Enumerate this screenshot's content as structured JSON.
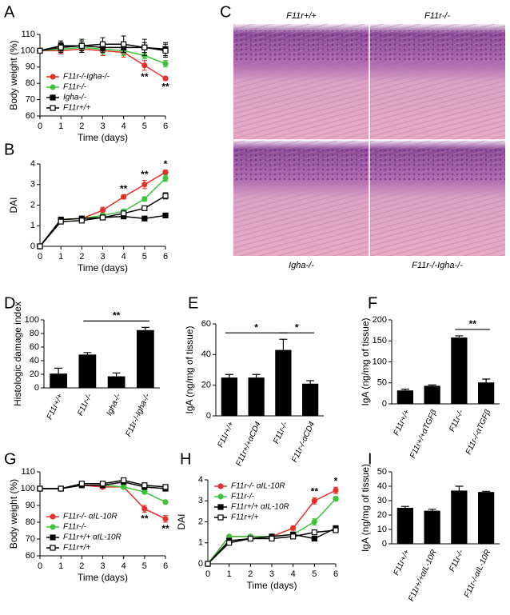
{
  "image_panel": {
    "panel": "C",
    "labels": [
      "F11r+/+",
      "F11r-/-",
      "Igha-/-",
      "F11r-/-Igha-/-"
    ]
  },
  "chart_data": [
    {
      "panel": "A",
      "type": "line",
      "y_label": "Body weight (%)",
      "x_label": "Time (days)",
      "xlim": [
        0,
        6
      ],
      "xticks": [
        0,
        1,
        2,
        3,
        4,
        5,
        6
      ],
      "ylim": [
        60,
        110
      ],
      "yticks": [
        60,
        70,
        80,
        90,
        100,
        110
      ],
      "legend": "lower left",
      "annotation_side": "below",
      "x": [
        0,
        1,
        2,
        3,
        4,
        5,
        6
      ],
      "series": [
        {
          "name": "F11r-/-Igha-/-",
          "color": "#e8312a",
          "marker": "circle",
          "filled": true,
          "values": [
            100,
            100,
            101,
            100,
            99,
            91,
            83
          ],
          "errors": [
            0,
            2,
            2,
            3,
            3,
            3,
            1
          ]
        },
        {
          "name": "F11r-/-",
          "color": "#3cc43c",
          "marker": "circle",
          "filled": true,
          "values": [
            100,
            101,
            102,
            101,
            100,
            97,
            92
          ],
          "errors": [
            0,
            2,
            3,
            3,
            3,
            2,
            2
          ]
        },
        {
          "name": "Igha-/-",
          "color": "#000000",
          "marker": "square",
          "filled": true,
          "values": [
            100,
            103,
            103,
            102,
            102,
            102,
            101
          ],
          "errors": [
            0,
            3,
            3,
            3,
            3,
            3,
            4
          ]
        },
        {
          "name": "F11r+/+",
          "color": "#000000",
          "marker": "square",
          "filled": false,
          "values": [
            100,
            102,
            103,
            104,
            104,
            102,
            100
          ],
          "errors": [
            0,
            3,
            4,
            4,
            5,
            5,
            4
          ]
        }
      ],
      "annotations": [
        {
          "text": "**",
          "x": 5
        },
        {
          "text": "**",
          "x": 6
        }
      ]
    },
    {
      "panel": "B",
      "type": "line",
      "y_label": "DAI",
      "x_label": "Time (days)",
      "xlim": [
        0,
        6
      ],
      "xticks": [
        0,
        1,
        2,
        3,
        4,
        5,
        6
      ],
      "ylim": [
        0,
        4
      ],
      "yticks": [
        0,
        1,
        2,
        3,
        4
      ],
      "annotation_side": "above",
      "x": [
        0,
        1,
        2,
        3,
        4,
        5,
        6
      ],
      "series": [
        {
          "name": "F11r-/-Igha-/-",
          "color": "#e8312a",
          "marker": "circle",
          "filled": true,
          "values": [
            0,
            1.3,
            1.35,
            1.75,
            2.4,
            3.0,
            3.6
          ],
          "errors": [
            0,
            0.1,
            0.1,
            0.15,
            0.1,
            0.2,
            0.1
          ]
        },
        {
          "name": "F11r-/-",
          "color": "#3cc43c",
          "marker": "circle",
          "filled": true,
          "values": [
            0,
            1.3,
            1.35,
            1.5,
            1.7,
            2.3,
            3.3
          ],
          "errors": [
            0,
            0.1,
            0.1,
            0.1,
            0.1,
            0.1,
            0.15
          ]
        },
        {
          "name": "Igha-/-",
          "color": "#000000",
          "marker": "square",
          "filled": true,
          "values": [
            0,
            1.3,
            1.35,
            1.4,
            1.45,
            1.35,
            1.5
          ],
          "errors": [
            0,
            0.1,
            0.1,
            0.1,
            0.1,
            0.05,
            0.05
          ]
        },
        {
          "name": "F11r+/+",
          "color": "#000000",
          "marker": "square",
          "filled": false,
          "values": [
            0,
            1.2,
            1.25,
            1.4,
            1.6,
            1.85,
            2.45
          ],
          "errors": [
            0,
            0.1,
            0.1,
            0.1,
            0.1,
            0.1,
            0.15
          ]
        }
      ],
      "annotations": [
        {
          "text": "**",
          "x": 4
        },
        {
          "text": "**",
          "x": 5
        },
        {
          "text": "*",
          "x": 6
        }
      ]
    },
    {
      "panel": "D",
      "type": "bar",
      "y_label": "Histologic damage index",
      "ylim": [
        0,
        100
      ],
      "yticks": [
        0,
        20,
        40,
        60,
        80,
        100
      ],
      "color": "#000000",
      "categories": [
        "F11r+/+",
        "F11r-/-",
        "Igha-/-",
        "F11r-/-Igha-/-"
      ],
      "values": [
        21,
        49,
        17,
        85
      ],
      "errors": [
        8,
        3,
        5,
        4
      ],
      "brackets": [
        {
          "from": 1,
          "to": 3,
          "text": "**"
        }
      ]
    },
    {
      "panel": "E",
      "type": "bar",
      "y_label": "IgA (ng/mg of tissue)",
      "ylim": [
        0,
        60
      ],
      "yticks": [
        0,
        20,
        40,
        60
      ],
      "color": "#000000",
      "categories": [
        "F11r+/+",
        "F11r+/+αCD4",
        "F11r-/-",
        "F11r-/-αCD4"
      ],
      "values": [
        25,
        25,
        43,
        21
      ],
      "errors": [
        2,
        2,
        7,
        2
      ],
      "brackets": [
        {
          "from": 0,
          "to": 2,
          "text": "*"
        },
        {
          "from": 2,
          "to": 3,
          "text": "*"
        }
      ]
    },
    {
      "panel": "F",
      "type": "bar",
      "y_label": "IgA (ng/mg of tissue)",
      "ylim": [
        0,
        200
      ],
      "yticks": [
        0,
        50,
        100,
        150,
        200
      ],
      "color": "#000000",
      "categories": [
        "F11r+/+",
        "F11r+/+αTGFβ",
        "F11r-/-",
        "F11r-/-αTGFβ"
      ],
      "values": [
        32,
        43,
        158,
        51
      ],
      "errors": [
        3,
        2,
        4,
        8
      ],
      "brackets": [
        {
          "from": 2,
          "to": 3,
          "text": "**"
        }
      ]
    },
    {
      "panel": "G",
      "type": "line",
      "y_label": "Body weight (%)",
      "x_label": "Time (days)",
      "xlim": [
        0,
        6
      ],
      "xticks": [
        0,
        1,
        2,
        3,
        4,
        5,
        6
      ],
      "ylim": [
        60,
        110
      ],
      "yticks": [
        60,
        70,
        80,
        90,
        100,
        110
      ],
      "legend": "lower left",
      "annotation_side": "below",
      "x": [
        0,
        1,
        2,
        3,
        4,
        5,
        6
      ],
      "series": [
        {
          "name": "F11r-/- αIL-10R",
          "color": "#e8312a",
          "marker": "circle",
          "filled": true,
          "values": [
            100,
            100,
            102,
            101,
            101,
            88,
            82
          ],
          "errors": [
            0,
            1,
            1,
            1,
            1,
            2,
            2
          ]
        },
        {
          "name": "F11r-/-",
          "color": "#3cc43c",
          "marker": "circle",
          "filled": true,
          "values": [
            100,
            100,
            102,
            102,
            101,
            98,
            92
          ],
          "errors": [
            0,
            1,
            1,
            1,
            1,
            1,
            1
          ]
        },
        {
          "name": "F11r+/+ αIL-10R",
          "color": "#000000",
          "marker": "square",
          "filled": true,
          "values": [
            100,
            100,
            102,
            102,
            104,
            101,
            100
          ],
          "errors": [
            0,
            1,
            1,
            1,
            1,
            1,
            1
          ]
        },
        {
          "name": "F11r+/+",
          "color": "#000000",
          "marker": "square",
          "filled": false,
          "values": [
            100,
            100,
            103,
            103,
            105,
            102,
            101
          ],
          "errors": [
            0,
            1,
            1,
            1,
            1,
            1,
            1
          ]
        }
      ],
      "annotations": [
        {
          "text": "**",
          "x": 5
        },
        {
          "text": "**",
          "x": 6
        }
      ]
    },
    {
      "panel": "H",
      "type": "line",
      "y_label": "DAI",
      "x_label": "Time (days)",
      "xlim": [
        0,
        6
      ],
      "xticks": [
        0,
        1,
        2,
        3,
        4,
        5,
        6
      ],
      "ylim": [
        0,
        4
      ],
      "yticks": [
        0,
        1,
        2,
        3,
        4
      ],
      "legend": "upper left",
      "annotation_side": "above",
      "x": [
        0,
        1,
        2,
        3,
        4,
        5,
        6
      ],
      "series": [
        {
          "name": "F11r-/- αIL-10R",
          "color": "#e8312a",
          "marker": "circle",
          "filled": true,
          "values": [
            0,
            1.3,
            1.3,
            1.3,
            1.7,
            3.0,
            3.5
          ],
          "errors": [
            0,
            0.05,
            0.05,
            0.05,
            0.1,
            0.15,
            0.15
          ]
        },
        {
          "name": "F11r-/-",
          "color": "#3cc43c",
          "marker": "circle",
          "filled": true,
          "values": [
            0,
            1.3,
            1.3,
            1.3,
            1.4,
            2.0,
            3.1
          ],
          "errors": [
            0,
            0.05,
            0.05,
            0.05,
            0.05,
            0.15,
            0.1
          ]
        },
        {
          "name": "F11r+/+ αIL-10R",
          "color": "#000000",
          "marker": "square",
          "filled": true,
          "values": [
            0,
            1.1,
            1.2,
            1.3,
            1.4,
            1.2,
            1.7
          ],
          "errors": [
            0,
            0.05,
            0.05,
            0.05,
            0.05,
            0.1,
            0.1
          ]
        },
        {
          "name": "F11r+/+",
          "color": "#000000",
          "marker": "square",
          "filled": false,
          "values": [
            0,
            1.0,
            1.2,
            1.2,
            1.3,
            1.5,
            1.6
          ],
          "errors": [
            0,
            0.05,
            0.05,
            0.05,
            0.05,
            0.1,
            0.1
          ]
        }
      ],
      "annotations": [
        {
          "text": "**",
          "x": 5
        },
        {
          "text": "*",
          "x": 6
        }
      ]
    },
    {
      "panel": "I",
      "type": "bar",
      "y_label": "IgA (ng/mg of tissue)",
      "ylim": [
        0,
        50
      ],
      "yticks": [
        0,
        10,
        20,
        30,
        40,
        50
      ],
      "color": "#000000",
      "categories": [
        "F11r+/+",
        "F11r+/+αIL-10R",
        "F11r-/-",
        "F11r-/-αIL-10R"
      ],
      "values": [
        25,
        23,
        37,
        36
      ],
      "errors": [
        1,
        1,
        3,
        0.5
      ]
    }
  ]
}
